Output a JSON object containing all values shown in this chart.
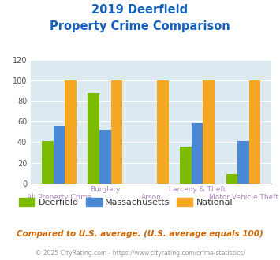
{
  "title_line1": "2019 Deerfield",
  "title_line2": "Property Crime Comparison",
  "title_color": "#1560bd",
  "categories": [
    "All Property Crime",
    "Burglary",
    "Arson",
    "Larceny & Theft",
    "Motor Vehicle Theft"
  ],
  "deerfield": [
    41,
    88,
    0,
    36,
    9
  ],
  "massachusetts": [
    56,
    52,
    0,
    59,
    41
  ],
  "national": [
    100,
    100,
    100,
    100,
    100
  ],
  "color_deerfield": "#7cbb00",
  "color_massachusetts": "#4888d4",
  "color_national": "#f5a623",
  "ylim": [
    0,
    120
  ],
  "yticks": [
    0,
    20,
    40,
    60,
    80,
    100,
    120
  ],
  "plot_bg_color": "#dce9f0",
  "footer_text": "Compared to U.S. average. (U.S. average equals 100)",
  "footer_color": "#cc6600",
  "credit_text": "© 2025 CityRating.com - https://www.cityrating.com/crime-statistics/",
  "credit_color": "#999999",
  "legend_labels": [
    "Deerfield",
    "Massachusetts",
    "National"
  ],
  "xlabel_color": "#aa88bb",
  "grid_color": "#ffffff",
  "x_top_labels": [
    "",
    "Burglary",
    "",
    "Larceny & Theft",
    ""
  ],
  "x_bot_labels": [
    "All Property Crime",
    "",
    "Arson",
    "",
    "Motor Vehicle Theft"
  ]
}
